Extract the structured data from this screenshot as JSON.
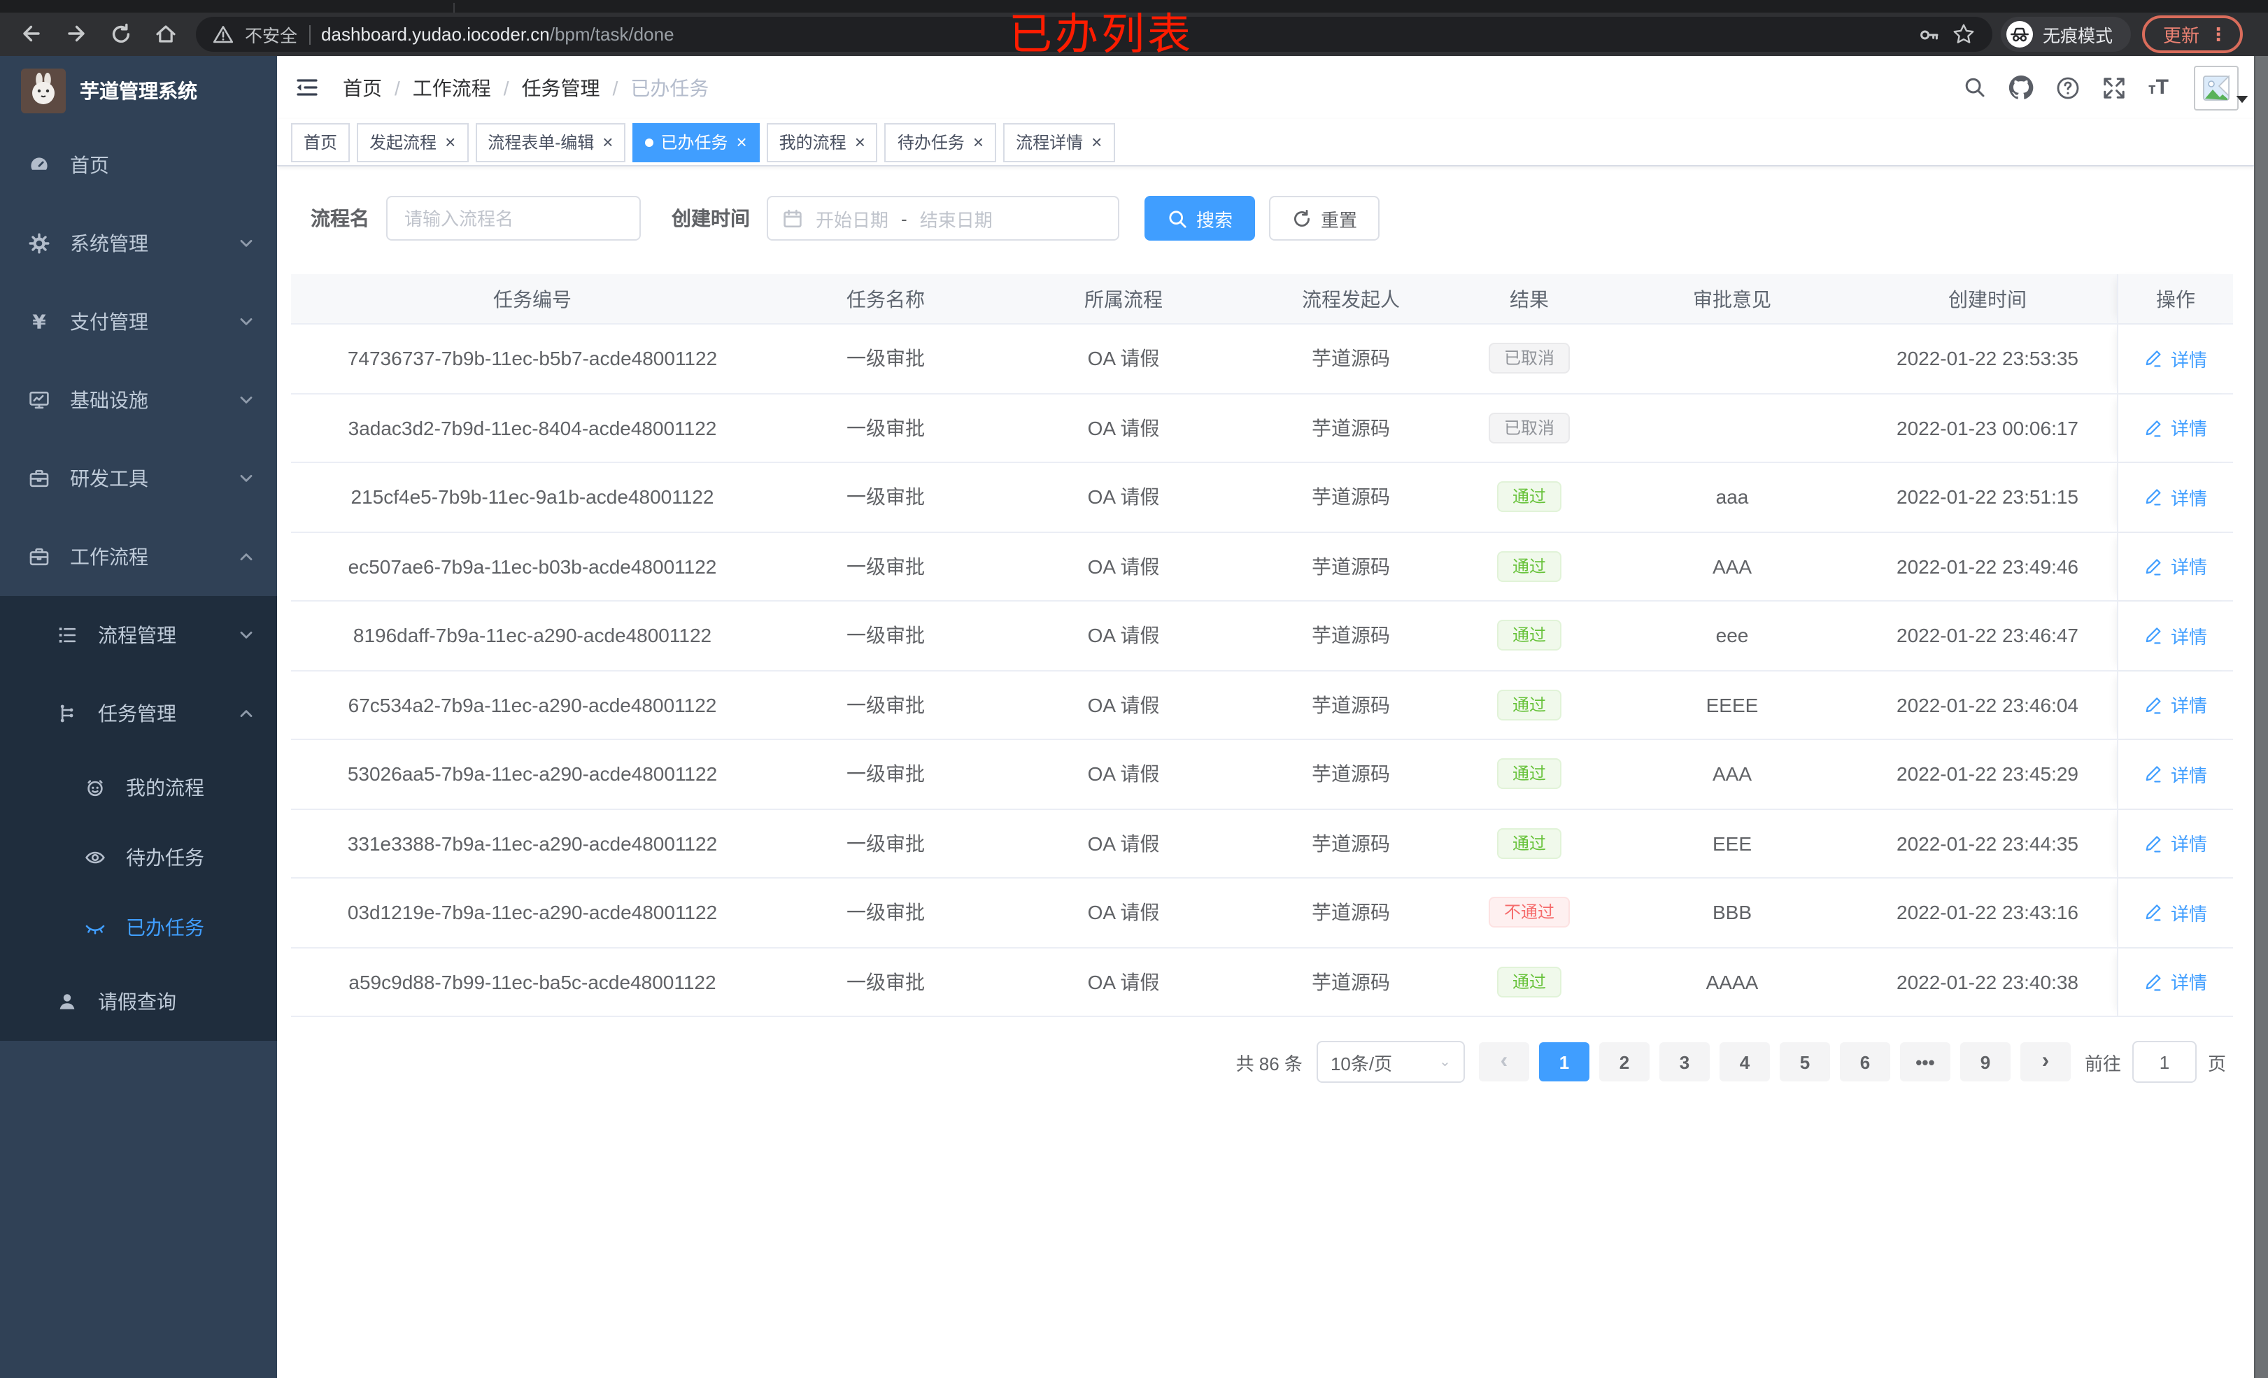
{
  "browser": {
    "nav_icons": [
      "back-icon",
      "forward-icon",
      "reload-icon",
      "home-icon"
    ],
    "secure_label": "不安全",
    "url_domain": "dashboard.yudao.iocoder.cn",
    "url_path": "/bpm/task/done",
    "pill_icons": [
      "warning-icon",
      "key-icon",
      "star-icon"
    ],
    "incognito_label": "无痕模式",
    "update_label": "更新",
    "update_color": "#ec8273",
    "menu_dots": "⋮"
  },
  "overlay": {
    "title": "已办列表",
    "color": "#fe1c00"
  },
  "sidebar": {
    "app_title": "芋道管理系统",
    "logo_icon": "rabbit-logo",
    "menu": [
      {
        "key": "home",
        "label": "首页",
        "icon": "dashboard-icon",
        "level": 0,
        "expandable": false
      },
      {
        "key": "system",
        "label": "系统管理",
        "icon": "gear-icon",
        "level": 0,
        "expandable": true,
        "expanded": false
      },
      {
        "key": "payment",
        "label": "支付管理",
        "icon": "yen-icon",
        "level": 0,
        "expandable": true,
        "expanded": false
      },
      {
        "key": "infrastructure",
        "label": "基础设施",
        "icon": "monitor-icon",
        "level": 0,
        "expandable": true,
        "expanded": false
      },
      {
        "key": "dev-tools",
        "label": "研发工具",
        "icon": "toolbox-icon",
        "level": 0,
        "expandable": true,
        "expanded": false
      },
      {
        "key": "workflow",
        "label": "工作流程",
        "icon": "briefcase-icon",
        "level": 0,
        "expandable": true,
        "expanded": true
      },
      {
        "key": "process-mgmt",
        "label": "流程管理",
        "icon": "list-tree-icon",
        "level": 1,
        "submenu": true,
        "expandable": true,
        "expanded": false
      },
      {
        "key": "task-mgmt",
        "label": "任务管理",
        "icon": "flow-icon",
        "level": 1,
        "submenu": true,
        "expandable": true,
        "expanded": true
      },
      {
        "key": "my-process",
        "label": "我的流程",
        "icon": "face-icon",
        "level": 2,
        "submenu": true
      },
      {
        "key": "todo-tasks",
        "label": "待办任务",
        "icon": "eye-open-icon",
        "level": 2,
        "submenu": true
      },
      {
        "key": "done-tasks",
        "label": "已办任务",
        "icon": "eye-closed-icon",
        "level": 2,
        "submenu": true,
        "active": true
      },
      {
        "key": "leave-query",
        "label": "请假查询",
        "icon": "user-icon",
        "level": 1,
        "submenu": true
      }
    ]
  },
  "navbar": {
    "breadcrumb": [
      "首页",
      "工作流程",
      "任务管理",
      "已办任务"
    ],
    "icons": [
      "search-icon",
      "github-icon",
      "question-icon",
      "fullscreen-icon",
      "font-size-icon"
    ]
  },
  "tabs": [
    {
      "key": "home",
      "label": "首页",
      "closable": false,
      "active": false
    },
    {
      "key": "start-process",
      "label": "发起流程",
      "closable": true,
      "active": false
    },
    {
      "key": "form-edit",
      "label": "流程表单-编辑",
      "closable": true,
      "active": false
    },
    {
      "key": "done-tasks",
      "label": "已办任务",
      "closable": true,
      "active": true
    },
    {
      "key": "my-process",
      "label": "我的流程",
      "closable": true,
      "active": false
    },
    {
      "key": "todo-tasks",
      "label": "待办任务",
      "closable": true,
      "active": false
    },
    {
      "key": "process-detail",
      "label": "流程详情",
      "closable": true,
      "active": false
    }
  ],
  "filters": {
    "name_label": "流程名",
    "name_placeholder": "请输入流程名",
    "date_label": "创建时间",
    "date_start_placeholder": "开始日期",
    "date_separator": "-",
    "date_end_placeholder": "结束日期",
    "search_label": "搜索",
    "reset_label": "重置"
  },
  "table": {
    "columns": [
      "任务编号",
      "任务名称",
      "所属流程",
      "流程发起人",
      "结果",
      "审批意见",
      "创建时间",
      "操作"
    ],
    "action_label": "详情",
    "result_colors": {
      "success": "#67c23a",
      "danger": "#f56c6c",
      "info": "#909399"
    },
    "rows": [
      {
        "id": "74736737-7b9b-11ec-b5b7-acde48001122",
        "name": "一级审批",
        "process": "OA 请假",
        "starter": "芋道源码",
        "result": "已取消",
        "result_type": "info",
        "opinion": "",
        "created": "2022-01-22 23:53:35"
      },
      {
        "id": "3adac3d2-7b9d-11ec-8404-acde48001122",
        "name": "一级审批",
        "process": "OA 请假",
        "starter": "芋道源码",
        "result": "已取消",
        "result_type": "info",
        "opinion": "",
        "created": "2022-01-23 00:06:17"
      },
      {
        "id": "215cf4e5-7b9b-11ec-9a1b-acde48001122",
        "name": "一级审批",
        "process": "OA 请假",
        "starter": "芋道源码",
        "result": "通过",
        "result_type": "success",
        "opinion": "aaa",
        "created": "2022-01-22 23:51:15"
      },
      {
        "id": "ec507ae6-7b9a-11ec-b03b-acde48001122",
        "name": "一级审批",
        "process": "OA 请假",
        "starter": "芋道源码",
        "result": "通过",
        "result_type": "success",
        "opinion": "AAA",
        "created": "2022-01-22 23:49:46"
      },
      {
        "id": "8196daff-7b9a-11ec-a290-acde48001122",
        "name": "一级审批",
        "process": "OA 请假",
        "starter": "芋道源码",
        "result": "通过",
        "result_type": "success",
        "opinion": "eee",
        "created": "2022-01-22 23:46:47"
      },
      {
        "id": "67c534a2-7b9a-11ec-a290-acde48001122",
        "name": "一级审批",
        "process": "OA 请假",
        "starter": "芋道源码",
        "result": "通过",
        "result_type": "success",
        "opinion": "EEEE",
        "created": "2022-01-22 23:46:04"
      },
      {
        "id": "53026aa5-7b9a-11ec-a290-acde48001122",
        "name": "一级审批",
        "process": "OA 请假",
        "starter": "芋道源码",
        "result": "通过",
        "result_type": "success",
        "opinion": "AAA",
        "created": "2022-01-22 23:45:29"
      },
      {
        "id": "331e3388-7b9a-11ec-a290-acde48001122",
        "name": "一级审批",
        "process": "OA 请假",
        "starter": "芋道源码",
        "result": "通过",
        "result_type": "success",
        "opinion": "EEE",
        "created": "2022-01-22 23:44:35"
      },
      {
        "id": "03d1219e-7b9a-11ec-a290-acde48001122",
        "name": "一级审批",
        "process": "OA 请假",
        "starter": "芋道源码",
        "result": "不通过",
        "result_type": "danger",
        "opinion": "BBB",
        "created": "2022-01-22 23:43:16"
      },
      {
        "id": "a59c9d88-7b99-11ec-ba5c-acde48001122",
        "name": "一级审批",
        "process": "OA 请假",
        "starter": "芋道源码",
        "result": "通过",
        "result_type": "success",
        "opinion": "AAAA",
        "created": "2022-01-22 23:40:38"
      }
    ]
  },
  "pagination": {
    "total_label": "共 86 条",
    "page_size": "10条/页",
    "pages": [
      "1",
      "2",
      "3",
      "4",
      "5",
      "6",
      "•••",
      "9"
    ],
    "active_page": "1",
    "prev": "‹",
    "next": "›",
    "goto_label": "前往",
    "goto_value": "1",
    "goto_suffix": "页"
  },
  "theme": {
    "accent": "#409eff",
    "sidebar_bg": "#304156",
    "submenu_bg": "#1f2d3d",
    "table_border": "#ebeef5"
  }
}
